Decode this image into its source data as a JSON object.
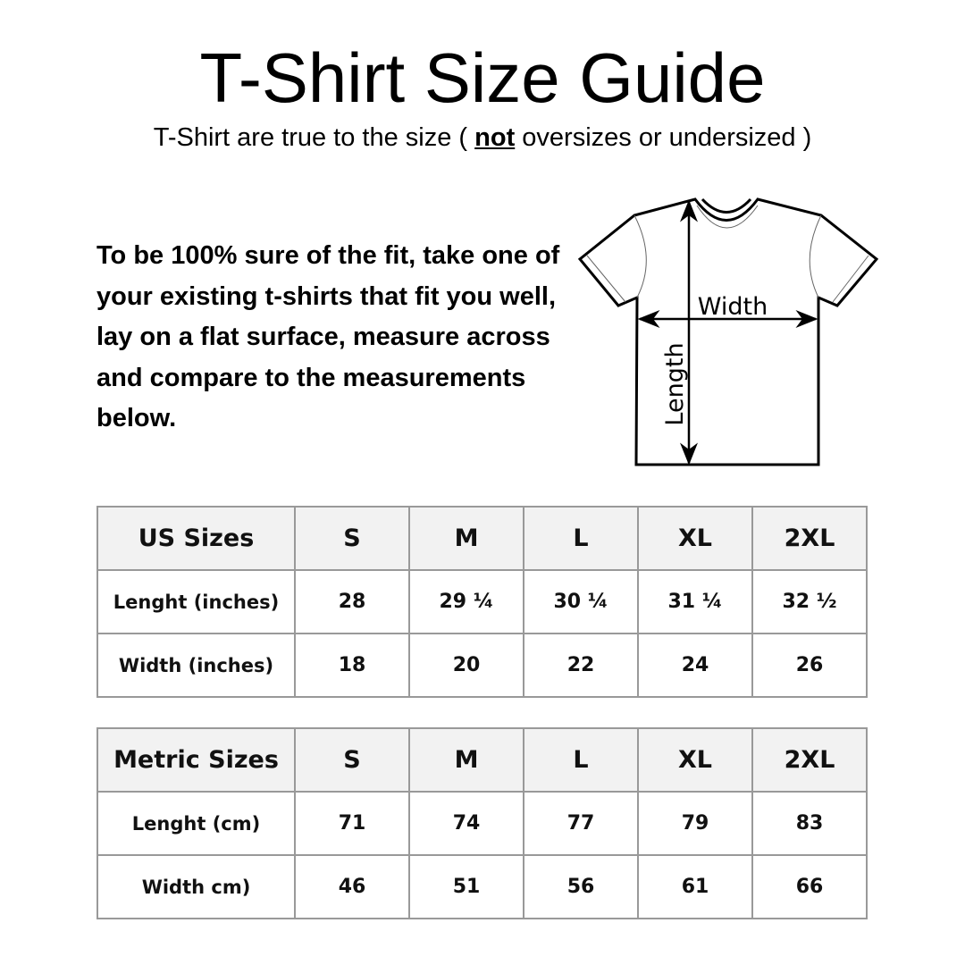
{
  "title": "T-Shirt Size Guide",
  "subtitle": {
    "before": "T-Shirt are true to the size ( ",
    "emphasis": "not",
    "after": " oversizes or undersized )"
  },
  "instructions": "To be 100% sure of the fit, take one of your existing t-shirts that fit you well, lay on a flat surface, measure across and compare to the measurements below.",
  "diagram": {
    "width_label": "Width",
    "length_label": "Length"
  },
  "us_table": {
    "header": [
      "US Sizes",
      "S",
      "M",
      "L",
      "XL",
      "2XL"
    ],
    "rows": [
      [
        "Lenght (inches)",
        "28",
        "29 ¼",
        "30 ¼",
        "31 ¼",
        "32 ½"
      ],
      [
        "Width (inches)",
        "18",
        "20",
        "22",
        "24",
        "26"
      ]
    ]
  },
  "metric_table": {
    "header": [
      "Metric Sizes",
      "S",
      "M",
      "L",
      "XL",
      "2XL"
    ],
    "rows": [
      [
        "Lenght (cm)",
        "71",
        "74",
        "77",
        "79",
        "83"
      ],
      [
        "Width cm)",
        "46",
        "51",
        "56",
        "61",
        "66"
      ]
    ]
  }
}
